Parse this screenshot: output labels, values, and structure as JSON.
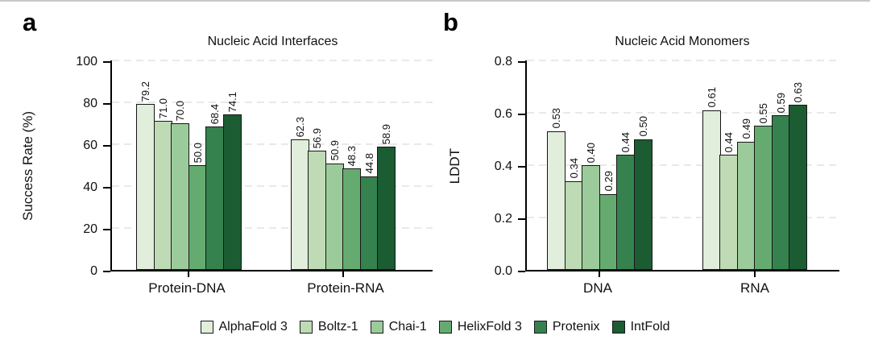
{
  "legend": {
    "position": "bottom",
    "items": [
      {
        "label": "AlphaFold 3",
        "color": "#e0eedb"
      },
      {
        "label": "Boltz-1",
        "color": "#bedbb5"
      },
      {
        "label": "Chai-1",
        "color": "#9ccb9b"
      },
      {
        "label": "HelixFold 3",
        "color": "#65ab70"
      },
      {
        "label": "Protenix",
        "color": "#35824f"
      },
      {
        "label": "IntFold",
        "color": "#1c5c33"
      }
    ]
  },
  "chart_data": [
    {
      "type": "bar",
      "panel_label": "a",
      "title": "Nucleic Acid Interfaces",
      "xlabel": "",
      "ylabel": "Success Rate (%)",
      "ylim": [
        0,
        100
      ],
      "yticks": [
        {
          "label": "0",
          "value": 0
        },
        {
          "label": "20",
          "value": 20
        },
        {
          "label": "40",
          "value": 40
        },
        {
          "label": "60",
          "value": 60
        },
        {
          "label": "80",
          "value": 80
        },
        {
          "label": "100",
          "value": 100
        }
      ],
      "grid": "horizontal-dashed",
      "categories": [
        "Protein-DNA",
        "Protein-RNA"
      ],
      "series": [
        {
          "name": "AlphaFold 3",
          "values": [
            79.2,
            62.3
          ],
          "labels": [
            "79.2",
            "62.3"
          ]
        },
        {
          "name": "Boltz-1",
          "values": [
            71.0,
            56.9
          ],
          "labels": [
            "71.0",
            "56.9"
          ]
        },
        {
          "name": "Chai-1",
          "values": [
            70.0,
            50.9
          ],
          "labels": [
            "70.0",
            "50.9"
          ]
        },
        {
          "name": "HelixFold 3",
          "values": [
            50.0,
            48.3
          ],
          "labels": [
            "50.0",
            "48.3"
          ]
        },
        {
          "name": "Protenix",
          "values": [
            68.4,
            44.8
          ],
          "labels": [
            "68.4",
            "44.8"
          ]
        },
        {
          "name": "IntFold",
          "values": [
            74.1,
            58.9
          ],
          "labels": [
            "74.1",
            "58.9"
          ]
        }
      ],
      "bar_label_rotation": -90
    },
    {
      "type": "bar",
      "panel_label": "b",
      "title": "Nucleic Acid Monomers",
      "xlabel": "",
      "ylabel": "LDDT",
      "ylim": [
        0,
        0.8
      ],
      "yticks": [
        {
          "label": "0.0",
          "value": 0
        },
        {
          "label": "0.2",
          "value": 0.2
        },
        {
          "label": "0.4",
          "value": 0.4
        },
        {
          "label": "0.6",
          "value": 0.6
        },
        {
          "label": "0.8",
          "value": 0.8
        }
      ],
      "grid": "horizontal-dashed",
      "categories": [
        "DNA",
        "RNA"
      ],
      "series": [
        {
          "name": "AlphaFold 3",
          "values": [
            0.53,
            0.61
          ],
          "labels": [
            "0.53",
            "0.61"
          ]
        },
        {
          "name": "Boltz-1",
          "values": [
            0.34,
            0.44
          ],
          "labels": [
            "0.34",
            "0.44"
          ]
        },
        {
          "name": "Chai-1",
          "values": [
            0.4,
            0.49
          ],
          "labels": [
            "0.40",
            "0.49"
          ]
        },
        {
          "name": "HelixFold 3",
          "values": [
            0.29,
            0.55
          ],
          "labels": [
            "0.29",
            "0.55"
          ]
        },
        {
          "name": "Protenix",
          "values": [
            0.44,
            0.59
          ],
          "labels": [
            "0.44",
            "0.59"
          ]
        },
        {
          "name": "IntFold",
          "values": [
            0.5,
            0.63
          ],
          "labels": [
            "0.50",
            "0.63"
          ]
        }
      ],
      "bar_label_rotation": -90
    }
  ]
}
